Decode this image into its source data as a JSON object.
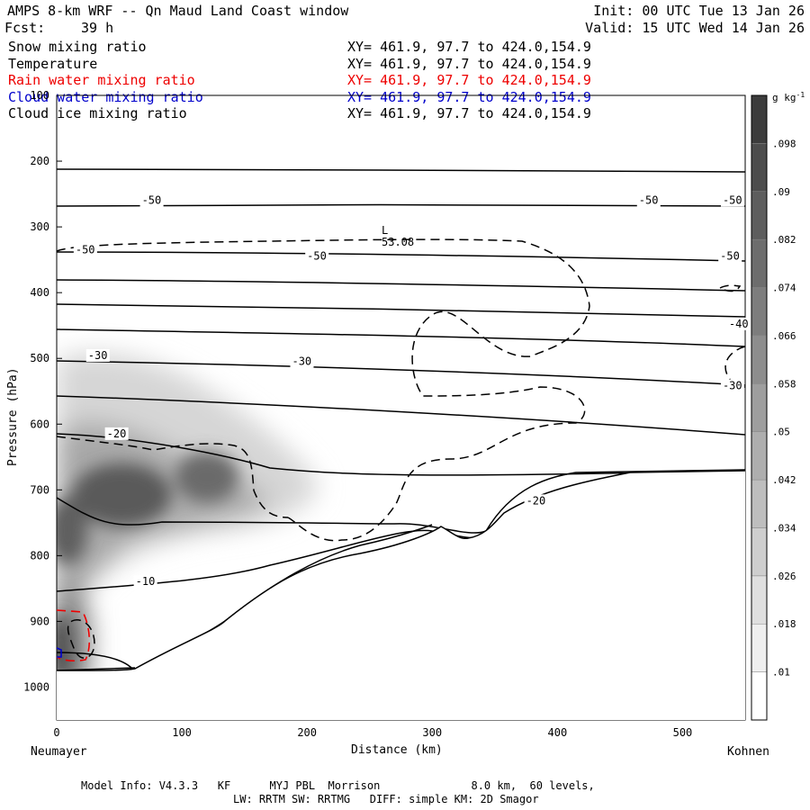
{
  "header": {
    "title": "AMPS 8-km WRF -- Qn Maud Land Coast window",
    "fcst_label": "Fcst:",
    "fcst_value": "39 h",
    "init": "Init: 00 UTC Tue 13 Jan 26",
    "valid": "Valid: 15 UTC Wed 14 Jan 26"
  },
  "fields": [
    {
      "name": "Snow mixing ratio",
      "xy": "XY= 461.9, 97.7 to 424.0,154.9",
      "color": "#000000"
    },
    {
      "name": "Temperature",
      "xy": "XY= 461.9, 97.7 to 424.0,154.9",
      "color": "#000000"
    },
    {
      "name": "Rain water mixing ratio",
      "xy": "XY= 461.9, 97.7 to 424.0,154.9",
      "color": "#ee0000"
    },
    {
      "name": "Cloud water mixing ratio",
      "xy": "XY= 461.9, 97.7 to 424.0,154.9",
      "color": "#0000cc"
    },
    {
      "name": "Cloud ice mixing ratio",
      "xy": "XY= 461.9, 97.7 to 424.0,154.9",
      "color": "#000000"
    }
  ],
  "chart_data": {
    "type": "heatmap",
    "title": "AMPS 8-km WRF -- Qn Maud Land Coast window",
    "xlabel": "Distance (km)",
    "ylabel": "Pressure (hPa)",
    "xlim": [
      0,
      550
    ],
    "ylim": [
      1050,
      100
    ],
    "x_ticks": [
      0,
      100,
      200,
      300,
      400,
      500
    ],
    "y_ticks": [
      100,
      200,
      300,
      400,
      500,
      600,
      700,
      800,
      900,
      1000
    ],
    "x_start_label": "Neumayer",
    "x_end_label": "Kohnen",
    "colorbar": {
      "unit": "g kg",
      "unit_exp": "-1",
      "levels": [
        ".01",
        ".018",
        ".026",
        ".034",
        ".042",
        ".05",
        ".058",
        ".066",
        ".074",
        ".082",
        ".09",
        ".098"
      ]
    },
    "temperature_labels": [
      {
        "text": "-50",
        "x": 68,
        "p": 265
      },
      {
        "text": "-50",
        "x": 465,
        "p": 265
      },
      {
        "text": "-50",
        "x": 532,
        "p": 265
      },
      {
        "text": "-50",
        "x": 15,
        "p": 340
      },
      {
        "text": "-50",
        "x": 200,
        "p": 350
      },
      {
        "text": "-50",
        "x": 530,
        "p": 350
      },
      {
        "text": "-40",
        "x": 537,
        "p": 453
      },
      {
        "text": "-30",
        "x": 25,
        "p": 501
      },
      {
        "text": "-30",
        "x": 188,
        "p": 510
      },
      {
        "text": "-30",
        "x": 532,
        "p": 547
      },
      {
        "text": "-20",
        "x": 40,
        "p": 620
      },
      {
        "text": "-20",
        "x": 375,
        "p": 722
      },
      {
        "text": "-10",
        "x": 63,
        "p": 845
      }
    ],
    "cloud_ice_low": {
      "label": "L",
      "value": "53.08",
      "x": 262,
      "p": 300
    }
  },
  "model_info": {
    "line1": "Model Info: V4.3.3   KF      MYJ PBL  Morrison              8.0 km,  60 levels,",
    "line2": "LW: RRTM SW: RRTMG   DIFF: simple KM: 2D Smagor"
  }
}
